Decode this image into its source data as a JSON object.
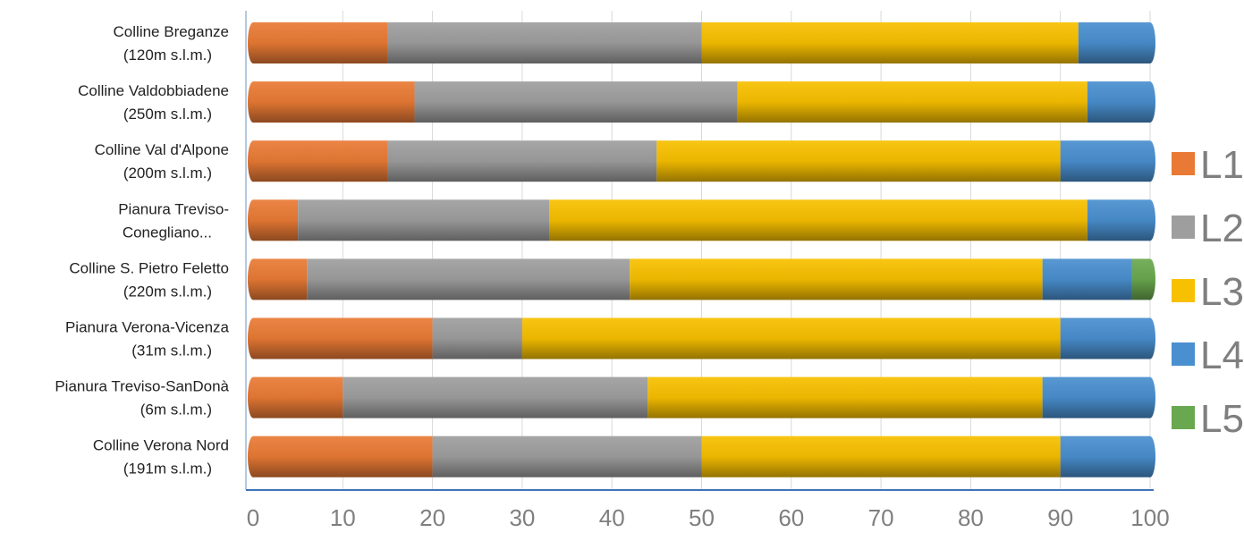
{
  "chart_data": {
    "type": "bar",
    "orientation": "horizontal",
    "stacked": true,
    "categories": [
      [
        "Colline Breganze",
        "(120m s.l.m.)"
      ],
      [
        "Colline Valdobbiadene",
        "(250m s.l.m.)"
      ],
      [
        "Colline Val d'Alpone",
        "(200m s.l.m.)"
      ],
      [
        "Pianura Treviso-",
        "Conegliano..."
      ],
      [
        "Colline S. Pietro Feletto",
        "(220m s.l.m.)"
      ],
      [
        "Pianura Verona-Vicenza",
        "(31m s.l.m.)"
      ],
      [
        "Pianura Treviso-SanDonà",
        "(6m s.l.m.)"
      ],
      [
        "Colline Verona Nord",
        "(191m s.l.m.)"
      ]
    ],
    "series": [
      {
        "name": "L1",
        "color": "#E97A35",
        "values": [
          15,
          18,
          15,
          5,
          6,
          20,
          10,
          20
        ]
      },
      {
        "name": "L2",
        "color": "#9E9E9E",
        "values": [
          35,
          36,
          30,
          28,
          36,
          10,
          34,
          30
        ]
      },
      {
        "name": "L3",
        "color": "#F7C000",
        "values": [
          42,
          39,
          45,
          60,
          46,
          60,
          44,
          40
        ]
      },
      {
        "name": "L4",
        "color": "#4A8FCF",
        "values": [
          8,
          7,
          10,
          7,
          10,
          10,
          12,
          10
        ]
      },
      {
        "name": "L5",
        "color": "#6AA84F",
        "values": [
          0,
          0,
          0,
          0,
          2,
          0,
          0,
          0
        ]
      }
    ],
    "xlim": [
      0,
      100
    ],
    "xticks": [
      "0",
      "10",
      "20",
      "30",
      "40",
      "50",
      "60",
      "70",
      "80",
      "90",
      "100"
    ],
    "grid": true,
    "legend_position": "right",
    "title": "",
    "xlabel": "",
    "ylabel": ""
  }
}
